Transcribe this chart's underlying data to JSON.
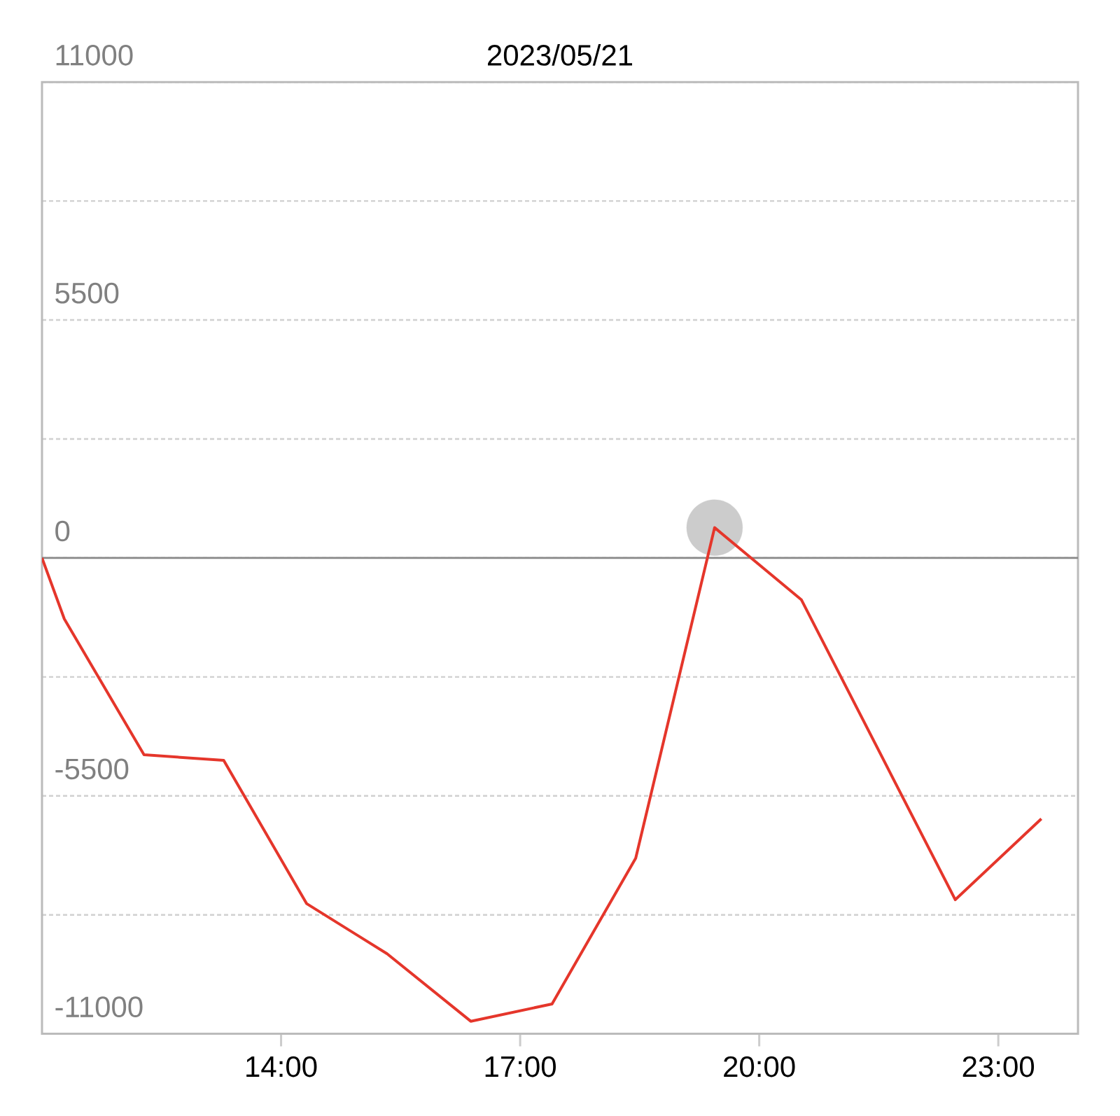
{
  "chart_data": {
    "type": "line",
    "title": "2023/05/21",
    "series": [
      {
        "color": "#e5362b",
        "x": [
          11,
          11.28,
          12.28,
          13.28,
          14.32,
          15.33,
          16.38,
          17.4,
          18.45,
          19.44,
          20.53,
          22.46,
          23.54
        ],
        "values": [
          0,
          -1410,
          -4550,
          -4680,
          -7990,
          -9150,
          -10710,
          -10310,
          -6940,
          700,
          -970,
          -7900,
          -6030
        ]
      },
      {
        "type": "scatter",
        "color": "#cccccc",
        "marker": "circle",
        "x": [
          19.44
        ],
        "values": [
          700
        ]
      }
    ],
    "xlim": [
      11,
      24
    ],
    "xticks": [
      {
        "value": 14,
        "label": "14:00"
      },
      {
        "value": 17,
        "label": "17:00"
      },
      {
        "value": 20,
        "label": "20:00"
      },
      {
        "value": 23,
        "label": "23:00"
      }
    ],
    "ylim": [
      -11000,
      11000
    ],
    "yticks": [
      11000,
      {
        "value": 8250,
        "label": null
      },
      5500,
      {
        "value": 2750,
        "label": null
      },
      0,
      {
        "value": -2750,
        "label": null
      },
      -5500,
      {
        "value": -8250,
        "label": null
      },
      -11000
    ],
    "grid": "y",
    "ref_lines": [
      {
        "axis": "y",
        "value": 0,
        "color": "#888888"
      }
    ]
  }
}
